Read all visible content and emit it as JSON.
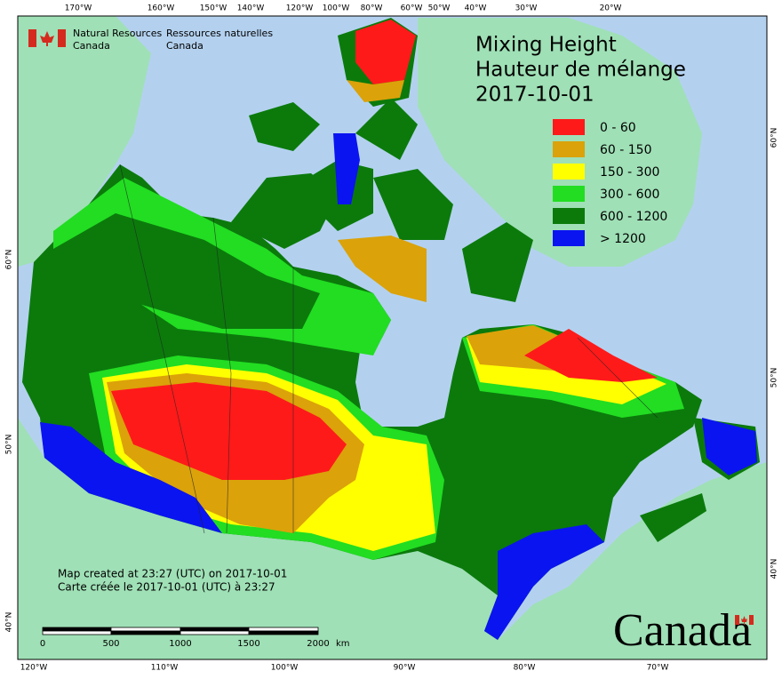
{
  "title": {
    "en": "Mixing Height",
    "fr": "Hauteur de mélange",
    "date": "2017-10-01"
  },
  "agency": {
    "en": [
      "Natural Resources",
      "Canada"
    ],
    "fr": [
      "Ressources naturelles",
      "Canada"
    ]
  },
  "legend": [
    {
      "label": "0 - 60",
      "color": "#ff1a1a"
    },
    {
      "label": "60 - 150",
      "color": "#dba20a"
    },
    {
      "label": "150 - 300",
      "color": "#ffff00"
    },
    {
      "label": "300 - 600",
      "color": "#22dd22"
    },
    {
      "label": "600 - 1200",
      "color": "#0b7a0b"
    },
    {
      "label": "> 1200",
      "color": "#0a14f0"
    }
  ],
  "notes": [
    "Map created at 23:27 (UTC) on 2017-10-01",
    "Carte créée le 2017-10-01 (UTC) à 23:27"
  ],
  "scale_bar": {
    "labels": [
      "0",
      "500",
      "1000",
      "1500",
      "2000"
    ],
    "unit": "km"
  },
  "graticule": {
    "top": [
      "170°W",
      "160°W",
      "150°W",
      "140°W",
      "120°W",
      "100°W",
      "80°W",
      "60°W",
      "50°W",
      "40°W",
      "30°W",
      "20°W"
    ],
    "bottom": [
      "120°W",
      "110°W",
      "100°W",
      "90°W",
      "80°W",
      "70°W"
    ],
    "left": [
      "60°N",
      "50°N",
      "40°N"
    ],
    "right": [
      "60°N",
      "50°N",
      "40°N"
    ]
  },
  "wordmark": "Canada"
}
